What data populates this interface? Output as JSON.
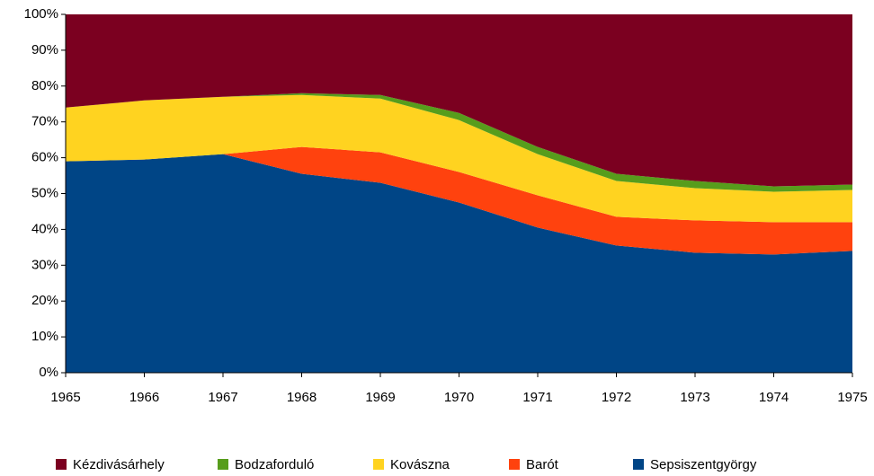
{
  "chart_data": {
    "type": "stacked_area",
    "x": [
      1965,
      1966,
      1967,
      1968,
      1969,
      1970,
      1971,
      1972,
      1973,
      1974,
      1975
    ],
    "xlim": [
      1965,
      1975
    ],
    "xticks": [
      1965,
      1966,
      1967,
      1968,
      1969,
      1970,
      1971,
      1972,
      1973,
      1974,
      1975
    ],
    "ylim": [
      0,
      100
    ],
    "yticks": [
      {
        "value": 0,
        "label": "0%"
      },
      {
        "value": 10,
        "label": "10%"
      },
      {
        "value": 20,
        "label": "20%"
      },
      {
        "value": 30,
        "label": "30%"
      },
      {
        "value": 40,
        "label": "40%"
      },
      {
        "value": 50,
        "label": "50%"
      },
      {
        "value": 60,
        "label": "60%"
      },
      {
        "value": 70,
        "label": "70%"
      },
      {
        "value": 80,
        "label": "80%"
      },
      {
        "value": 90,
        "label": "90%"
      },
      {
        "value": 100,
        "label": "100%"
      }
    ],
    "legend": "bottom",
    "series": [
      {
        "name": "Kézdivásárhely",
        "color": "#7b0020",
        "values": [
          26,
          24,
          23,
          22,
          22.5,
          27.5,
          37,
          44.5,
          46.5,
          48,
          47.5
        ]
      },
      {
        "name": "Bodzaforduló",
        "color": "#579d1c",
        "values": [
          0,
          0,
          0,
          0.5,
          1,
          2,
          2,
          2,
          2,
          1.5,
          1.5
        ]
      },
      {
        "name": "Kovászna",
        "color": "#ffd320",
        "values": [
          15,
          16.5,
          16,
          14.5,
          15,
          14.5,
          11.5,
          10,
          9,
          8.5,
          9
        ]
      },
      {
        "name": "Barót",
        "color": "#ff420e",
        "values": [
          0,
          0,
          0,
          7.5,
          8.5,
          8.5,
          9,
          8,
          9,
          9,
          8
        ]
      },
      {
        "name": "Sepsiszentgyörgy",
        "color": "#004586",
        "values": [
          59,
          59.5,
          61,
          55.5,
          53,
          47.5,
          40.5,
          35.5,
          33.5,
          33,
          34
        ]
      }
    ]
  }
}
